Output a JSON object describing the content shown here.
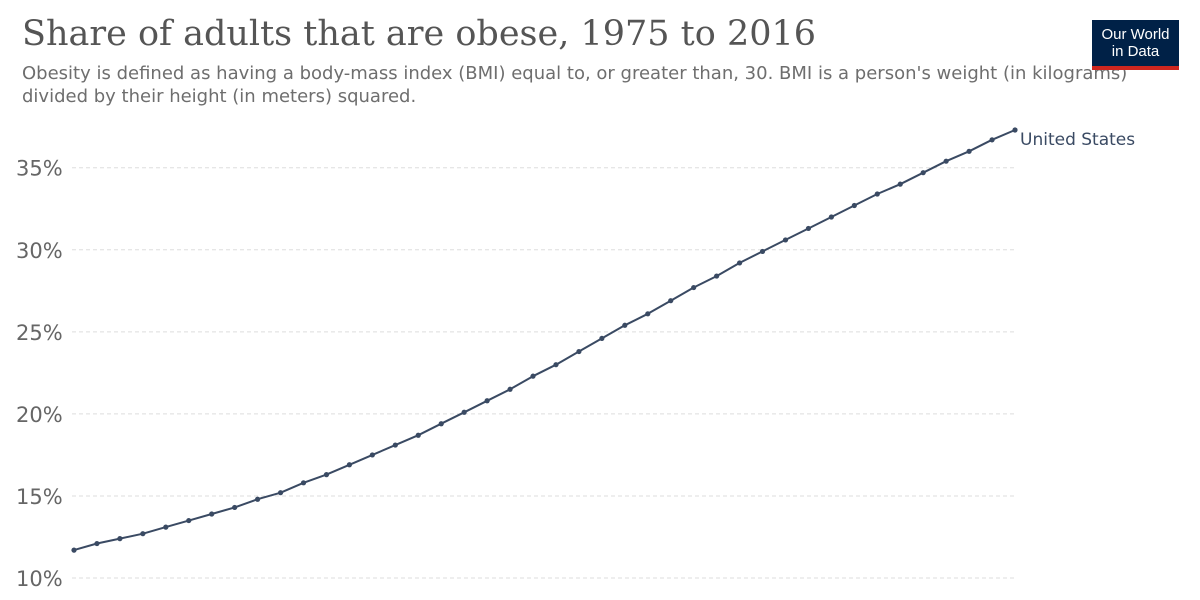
{
  "header": {
    "title": "Share of adults that are obese, 1975 to 2016",
    "subtitle": "Obesity is defined as having a body-mass index (BMI) equal to, or greater than, 30. BMI is a person's weight (in kilograms) divided by their height (in meters) squared."
  },
  "logo": {
    "line1": "Our World",
    "line2": "in Data"
  },
  "colors": {
    "series": "#3a4a63",
    "grid": "#dddddd",
    "tick_text": "#666666",
    "logo_bg": "#002147",
    "logo_accent": "#ce261e"
  },
  "chart_data": {
    "type": "line",
    "title": "Share of adults that are obese, 1975 to 2016",
    "xlabel": "",
    "ylabel": "",
    "xlim": [
      1975,
      2016
    ],
    "ylim": [
      10,
      37.3
    ],
    "y_ticks": [
      10,
      15,
      20,
      25,
      30,
      35
    ],
    "y_tick_labels": [
      "10%",
      "15%",
      "20%",
      "25%",
      "30%",
      "35%"
    ],
    "grid": true,
    "legend": "line-end label",
    "x": [
      1975,
      1976,
      1977,
      1978,
      1979,
      1980,
      1981,
      1982,
      1983,
      1984,
      1985,
      1986,
      1987,
      1988,
      1989,
      1990,
      1991,
      1992,
      1993,
      1994,
      1995,
      1996,
      1997,
      1998,
      1999,
      2000,
      2001,
      2002,
      2003,
      2004,
      2005,
      2006,
      2007,
      2008,
      2009,
      2010,
      2011,
      2012,
      2013,
      2014,
      2015,
      2016
    ],
    "series": [
      {
        "name": "United States",
        "values": [
          11.7,
          12.1,
          12.4,
          12.7,
          13.1,
          13.5,
          13.9,
          14.3,
          14.8,
          15.2,
          15.8,
          16.3,
          16.9,
          17.5,
          18.1,
          18.7,
          19.4,
          20.1,
          20.8,
          21.5,
          22.3,
          23.0,
          23.8,
          24.6,
          25.4,
          26.1,
          26.9,
          27.7,
          28.4,
          29.2,
          29.9,
          30.6,
          31.3,
          32.0,
          32.7,
          33.4,
          34.0,
          34.7,
          35.4,
          36.0,
          36.7,
          37.3
        ]
      }
    ]
  }
}
